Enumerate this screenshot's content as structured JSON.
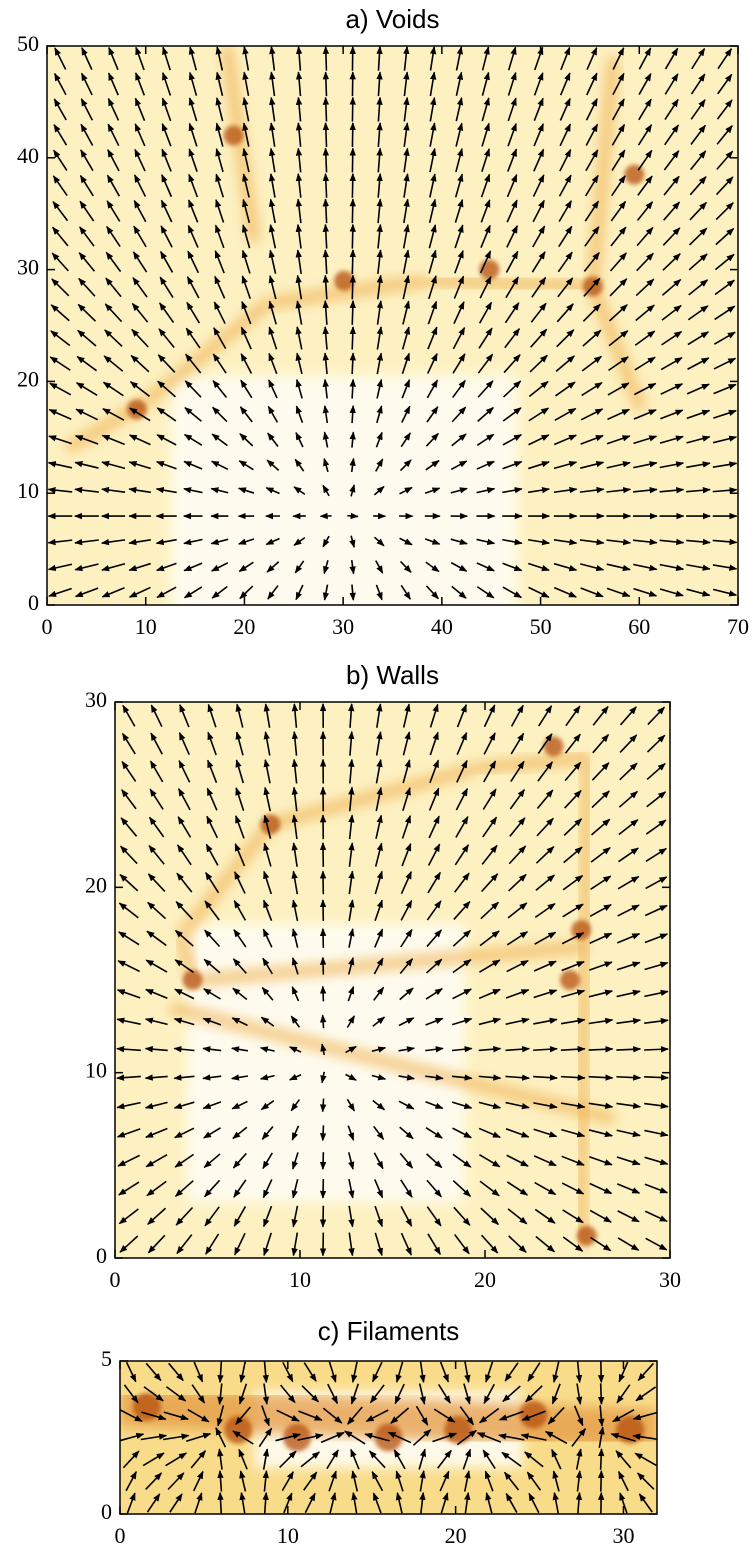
{
  "chart_data": [
    {
      "type": "quiver",
      "title": "a) Voids",
      "xlim": [
        0,
        70
      ],
      "ylim": [
        0,
        50
      ],
      "xticks": [
        0,
        10,
        20,
        30,
        40,
        50,
        60,
        70
      ],
      "yticks": [
        0,
        10,
        20,
        30,
        40,
        50
      ]
    },
    {
      "type": "quiver",
      "title": "b) Walls",
      "xlim": [
        0,
        30
      ],
      "ylim": [
        0,
        30
      ],
      "xticks": [
        0,
        10,
        20,
        30
      ],
      "yticks": [
        0,
        10,
        20,
        30
      ]
    },
    {
      "type": "quiver",
      "title": "c) Filaments",
      "xlim": [
        0,
        32
      ],
      "ylim": [
        0,
        5
      ],
      "xticks": [
        0,
        10,
        20,
        30
      ],
      "yticks": [
        0,
        5
      ]
    }
  ]
}
